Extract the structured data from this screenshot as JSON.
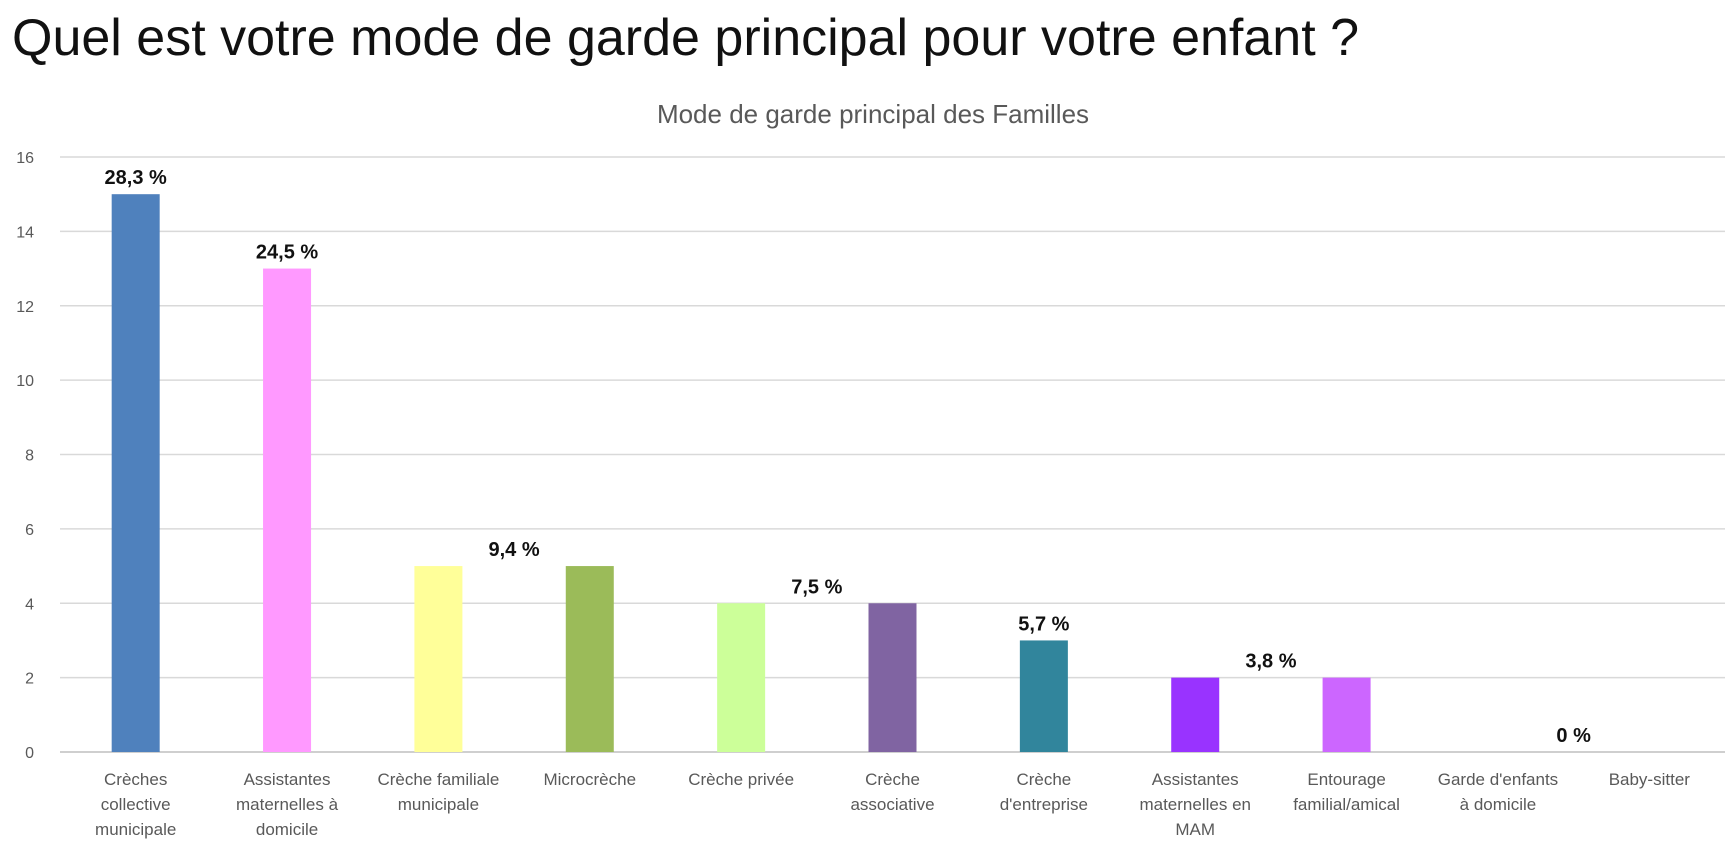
{
  "slide": {
    "title": "Quel est votre mode de garde principal pour votre enfant ?"
  },
  "chart_data": {
    "type": "bar",
    "title": "Mode de garde principal des Familles",
    "xlabel": "",
    "ylabel": "",
    "ylim": [
      0,
      16
    ],
    "yticks": [
      0,
      2,
      4,
      6,
      8,
      10,
      12,
      14,
      16
    ],
    "grid": true,
    "legend": "none",
    "categories": [
      [
        "Crèches",
        "collective",
        "municipale"
      ],
      [
        "Assistantes",
        "maternelles à",
        "domicile"
      ],
      [
        "Crèche familiale",
        "municipale"
      ],
      [
        "Microcrèche"
      ],
      [
        "Crèche privée"
      ],
      [
        "Crèche",
        "associative"
      ],
      [
        "Crèche",
        "d'entreprise"
      ],
      [
        "Assistantes",
        "maternelles en",
        "MAM"
      ],
      [
        "Entourage",
        "familial/amical"
      ],
      [
        "Garde d'enfants",
        "à domicile"
      ],
      [
        "Baby-sitter"
      ]
    ],
    "values": [
      15,
      13,
      5,
      5,
      4,
      4,
      3,
      2,
      2,
      0,
      0
    ],
    "colors": [
      "#4f81bd",
      "#ff99ff",
      "#ffff99",
      "#9bbb59",
      "#ccff99",
      "#8064a2",
      "#31859c",
      "#9933ff",
      "#cc66ff",
      "#d9d9d9",
      "#d9d9d9"
    ],
    "data_labels": [
      {
        "text": "28,3 %",
        "category_index": 0
      },
      {
        "text": "24,5 %",
        "category_index": 1
      },
      {
        "text": "9,4 %",
        "category_index": 2.5
      },
      {
        "text": "7,5 %",
        "category_index": 4.5
      },
      {
        "text": "5,7 %",
        "category_index": 6
      },
      {
        "text": "3,8 %",
        "category_index": 7.5
      },
      {
        "text": "0 %",
        "category_index": 9.5
      }
    ]
  }
}
